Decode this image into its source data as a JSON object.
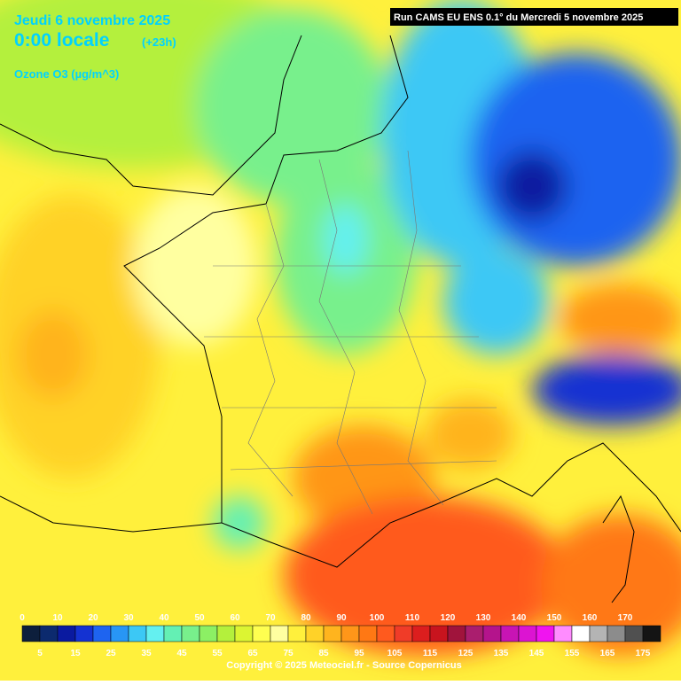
{
  "header": {
    "date": "Jeudi 6 novembre 2025",
    "time": "0:00 locale",
    "offset": "(+23h)",
    "variable": "Ozone O3 (µg/m^3)",
    "run": "Run CAMS EU ENS 0.1° du Mercredi 5 novembre 2025"
  },
  "legend": {
    "colors": [
      "#0d1f3c",
      "#0c2a6e",
      "#0a1aa0",
      "#1432d2",
      "#1e64f0",
      "#2896f5",
      "#3cc8f5",
      "#64f0f0",
      "#64f0b4",
      "#78f08c",
      "#8cf064",
      "#b4f03c",
      "#dcf532",
      "#ffff50",
      "#ffffa0",
      "#fff03c",
      "#ffd228",
      "#ffb41e",
      "#ff9619",
      "#ff7814",
      "#ff5a1e",
      "#f03c28",
      "#dc1e1e",
      "#c8141e",
      "#a0143c",
      "#aa1e6e",
      "#b4148c",
      "#c814b4",
      "#dc14d2",
      "#f014f0",
      "#ff8cff",
      "#ffffff",
      "#b4b4b4",
      "#8c8c8c",
      "#505050",
      "#141414"
    ],
    "top_labels": [
      0,
      10,
      20,
      30,
      40,
      50,
      60,
      70,
      80,
      90,
      100,
      110,
      120,
      130,
      140,
      150,
      160,
      170
    ],
    "bottom_labels": [
      5,
      15,
      25,
      35,
      45,
      55,
      65,
      75,
      85,
      95,
      105,
      115,
      125,
      135,
      145,
      155,
      165,
      175
    ]
  },
  "footer": "Copyright © 2025 Meteociel.fr - Source Copernicus"
}
